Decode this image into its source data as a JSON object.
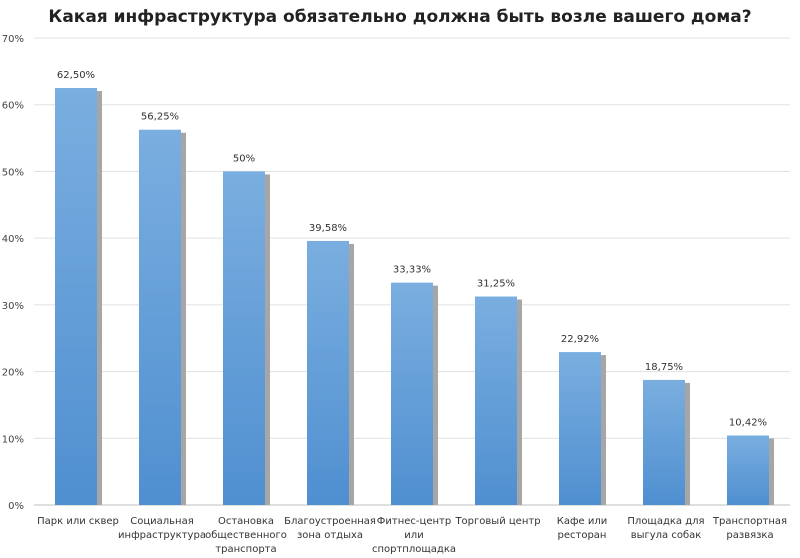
{
  "chart_data": {
    "type": "bar",
    "title": "Какая инфраструктура обязательно должна быть возле вашего дома?",
    "categories": [
      "Парк или сквер",
      "Социальная инфраструктура",
      "Остановка общественного транспорта",
      "Благоустроенная зона отдыха",
      "Фитнес-центр или спортплощадка",
      "Торговый центр",
      "Кафе или ресторан",
      "Площадка для выгула собак",
      "Транспортная развязка"
    ],
    "category_lines": [
      [
        "Парк или сквер"
      ],
      [
        "Социальная",
        "инфраструктура"
      ],
      [
        "Остановка",
        "общественного",
        "транспорта"
      ],
      [
        "Благоустроенная",
        "зона отдыха"
      ],
      [
        "Фитнес-центр",
        "или",
        "спортплощадка"
      ],
      [
        "Торговый центр"
      ],
      [
        "Кафе или",
        "ресторан"
      ],
      [
        "Площадка для",
        "выгула собак"
      ],
      [
        "Транспортная",
        "развязка"
      ]
    ],
    "values": [
      62.5,
      56.25,
      50,
      39.58,
      33.33,
      31.25,
      22.92,
      18.75,
      10.42
    ],
    "data_labels": [
      "62,50%",
      "56,25%",
      "50%",
      "39,58%",
      "33,33%",
      "31,25%",
      "22,92%",
      "18,75%",
      "10,42%"
    ],
    "ylim": [
      0,
      70
    ],
    "yticks": [
      "0%",
      "10%",
      "20%",
      "30%",
      "40%",
      "50%",
      "60%",
      "70%"
    ],
    "grid": true,
    "legend": "none",
    "colors": {
      "bar": "#5b9bd5",
      "bar_light": "#7fb0e0",
      "shadow": "#a6a6a6",
      "grid": "#e0e0e0"
    }
  }
}
